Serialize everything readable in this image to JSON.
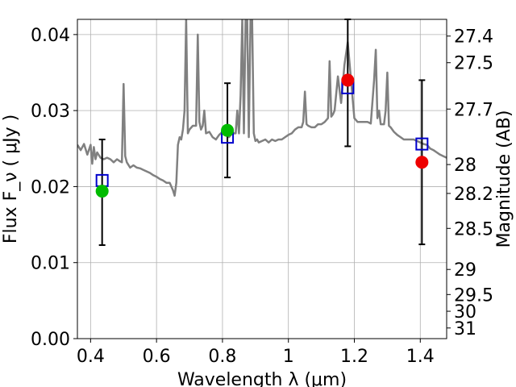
{
  "chart_data": {
    "type": "line",
    "xlabel": "Wavelength  λ (μm)",
    "ylabel": "Flux  F_ν  ( μJy )",
    "ylabel_right": "Magnitude (AB)",
    "xlim": [
      0.36,
      1.48
    ],
    "ylim": [
      0.0,
      0.042
    ],
    "grid": true,
    "legend": "none",
    "xticks": [
      0.4,
      0.6,
      0.8,
      1.0,
      1.2,
      1.4
    ],
    "xtick_labels": [
      "0.4",
      "0.6",
      "0.8",
      "1",
      "1.2",
      "1.4"
    ],
    "yticks": [
      0.0,
      0.01,
      0.02,
      0.03,
      0.04
    ],
    "ytick_labels": [
      "0.00",
      "0.01",
      "0.02",
      "0.03",
      "0.04"
    ],
    "right_ticks": [
      {
        "label": "27.4",
        "flux": 0.0398
      },
      {
        "label": "27.5",
        "flux": 0.0363
      },
      {
        "label": "27.7",
        "flux": 0.0302
      },
      {
        "label": "28",
        "flux": 0.0229
      },
      {
        "label": "28.2",
        "flux": 0.0191
      },
      {
        "label": "28.5",
        "flux": 0.0145
      },
      {
        "label": "29",
        "flux": 0.0091
      },
      {
        "label": "29.5",
        "flux": 0.0058
      },
      {
        "label": "30",
        "flux": 0.0036
      },
      {
        "label": "31",
        "flux": 0.0014
      }
    ],
    "series": [
      {
        "kind": "spectrum",
        "color": "#808080",
        "x": [
          0.36,
          0.37,
          0.38,
          0.39,
          0.4,
          0.405,
          0.41,
          0.415,
          0.42,
          0.43,
          0.44,
          0.45,
          0.46,
          0.47,
          0.48,
          0.49,
          0.495,
          0.5,
          0.505,
          0.51,
          0.52,
          0.53,
          0.54,
          0.55,
          0.56,
          0.57,
          0.58,
          0.59,
          0.6,
          0.61,
          0.62,
          0.63,
          0.64,
          0.65,
          0.655,
          0.66,
          0.665,
          0.67,
          0.675,
          0.68,
          0.685,
          0.69,
          0.695,
          0.7,
          0.71,
          0.72,
          0.725,
          0.73,
          0.735,
          0.74,
          0.745,
          0.75,
          0.76,
          0.77,
          0.78,
          0.79,
          0.8,
          0.81,
          0.82,
          0.83,
          0.84,
          0.845,
          0.85,
          0.855,
          0.86,
          0.865,
          0.87,
          0.875,
          0.88,
          0.885,
          0.89,
          0.895,
          0.9,
          0.905,
          0.91,
          0.92,
          0.93,
          0.94,
          0.95,
          0.96,
          0.97,
          0.98,
          0.99,
          1.0,
          1.01,
          1.02,
          1.03,
          1.04,
          1.045,
          1.05,
          1.055,
          1.06,
          1.07,
          1.08,
          1.09,
          1.1,
          1.11,
          1.12,
          1.125,
          1.13,
          1.135,
          1.14,
          1.15,
          1.16,
          1.17,
          1.18,
          1.19,
          1.2,
          1.21,
          1.22,
          1.23,
          1.24,
          1.25,
          1.26,
          1.265,
          1.27,
          1.275,
          1.28,
          1.29,
          1.295,
          1.3,
          1.305,
          1.31,
          1.32,
          1.33,
          1.34,
          1.35,
          1.36,
          1.37,
          1.38,
          1.39,
          1.4,
          1.41,
          1.42,
          1.43,
          1.44,
          1.45,
          1.46,
          1.47,
          1.48
        ],
        "y": [
          0.0255,
          0.0248,
          0.0256,
          0.0242,
          0.0255,
          0.023,
          0.0252,
          0.0236,
          0.0245,
          0.0238,
          0.0236,
          0.0238,
          0.0236,
          0.0232,
          0.0236,
          0.0233,
          0.0232,
          0.0335,
          0.024,
          0.0232,
          0.0225,
          0.0228,
          0.0225,
          0.0224,
          0.0222,
          0.022,
          0.0218,
          0.0215,
          0.0213,
          0.021,
          0.0208,
          0.0205,
          0.0205,
          0.0195,
          0.0188,
          0.0205,
          0.0255,
          0.0265,
          0.0262,
          0.0275,
          0.03,
          0.042,
          0.027,
          0.0275,
          0.028,
          0.028,
          0.04,
          0.0285,
          0.0275,
          0.028,
          0.03,
          0.027,
          0.0272,
          0.0265,
          0.0262,
          0.0268,
          0.0272,
          0.0268,
          0.0265,
          0.027,
          0.027,
          0.03,
          0.027,
          0.032,
          0.042,
          0.027,
          0.042,
          0.042,
          0.0265,
          0.042,
          0.042,
          0.027,
          0.026,
          0.0262,
          0.0258,
          0.026,
          0.0262,
          0.0258,
          0.0262,
          0.026,
          0.0262,
          0.0262,
          0.0265,
          0.0268,
          0.027,
          0.0275,
          0.0278,
          0.0278,
          0.0285,
          0.0325,
          0.0282,
          0.028,
          0.0278,
          0.0278,
          0.0282,
          0.0282,
          0.0285,
          0.029,
          0.0365,
          0.0292,
          0.0295,
          0.03,
          0.0345,
          0.031,
          0.036,
          0.039,
          0.034,
          0.029,
          0.0285,
          0.0285,
          0.0285,
          0.0285,
          0.0283,
          0.034,
          0.038,
          0.029,
          0.03,
          0.0282,
          0.0282,
          0.03,
          0.035,
          0.028,
          0.0278,
          0.0272,
          0.0268,
          0.0265,
          0.0262,
          0.0262,
          0.0262,
          0.0262,
          0.026,
          0.0258,
          0.0256,
          0.0255,
          0.025,
          0.0248,
          0.0245,
          0.0242,
          0.024,
          0.0238
        ]
      },
      {
        "kind": "errorbar",
        "color": "#000000",
        "points": [
          {
            "x": 0.435,
            "y": 0.0194,
            "ylo": 0.0123,
            "yhi": 0.0262
          },
          {
            "x": 0.815,
            "y": 0.0274,
            "ylo": 0.0212,
            "yhi": 0.0336
          },
          {
            "x": 1.18,
            "y": 0.034,
            "ylo": 0.0253,
            "yhi": 0.042
          },
          {
            "x": 1.405,
            "y": 0.0232,
            "ylo": 0.0124,
            "yhi": 0.034
          }
        ]
      },
      {
        "kind": "model-squares",
        "color": "#0000cc",
        "x": [
          0.435,
          0.815,
          1.18,
          1.405
        ],
        "y": [
          0.0208,
          0.0265,
          0.033,
          0.0256
        ]
      },
      {
        "kind": "photometry-green",
        "color": "#00bb00",
        "x": [
          0.435,
          0.815
        ],
        "y": [
          0.0194,
          0.0274
        ]
      },
      {
        "kind": "photometry-red",
        "color": "#ee0000",
        "x": [
          1.18,
          1.405
        ],
        "y": [
          0.034,
          0.0232
        ]
      }
    ]
  }
}
